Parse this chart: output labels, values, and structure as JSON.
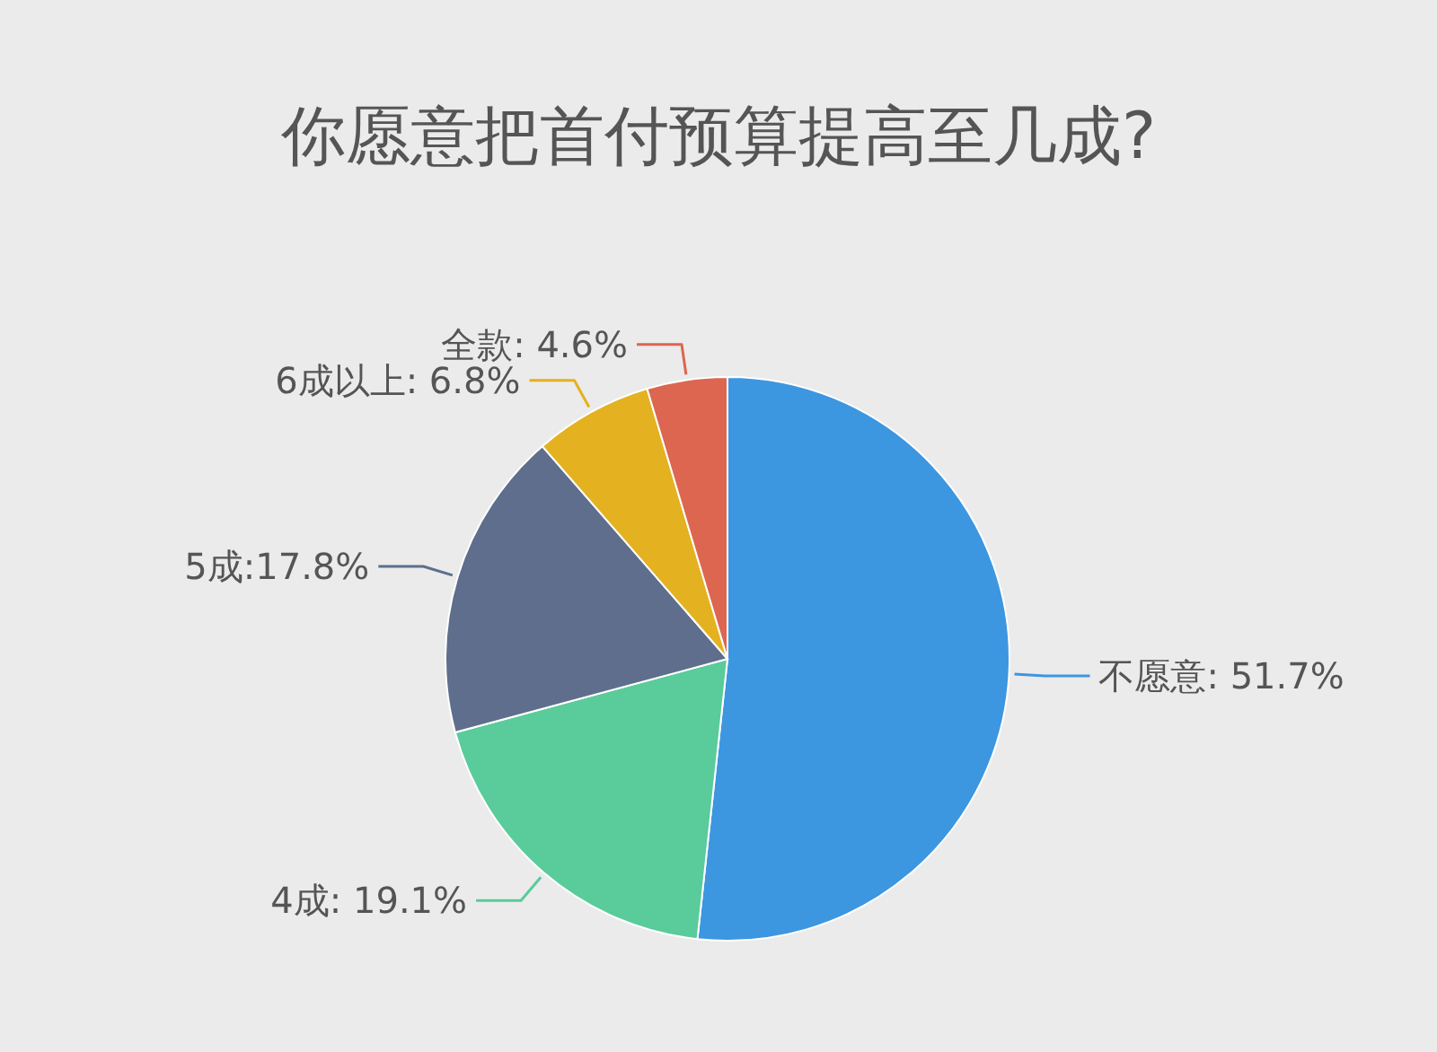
{
  "chart_data": {
    "type": "pie",
    "title": "你愿意把首付预算提高至几成?",
    "categories": [
      "不愿意",
      "4成",
      "5成",
      "6成以上",
      "全款"
    ],
    "values": [
      51.7,
      19.1,
      17.8,
      6.8,
      4.6
    ],
    "colors": [
      "#3d96e0",
      "#5acb9a",
      "#5e6e8c",
      "#e4b120",
      "#dc6650"
    ],
    "value_labels": [
      ": 51.7%",
      ": 19.1%",
      ":17.8%",
      ": 6.8%",
      ": 4.6%"
    ]
  }
}
